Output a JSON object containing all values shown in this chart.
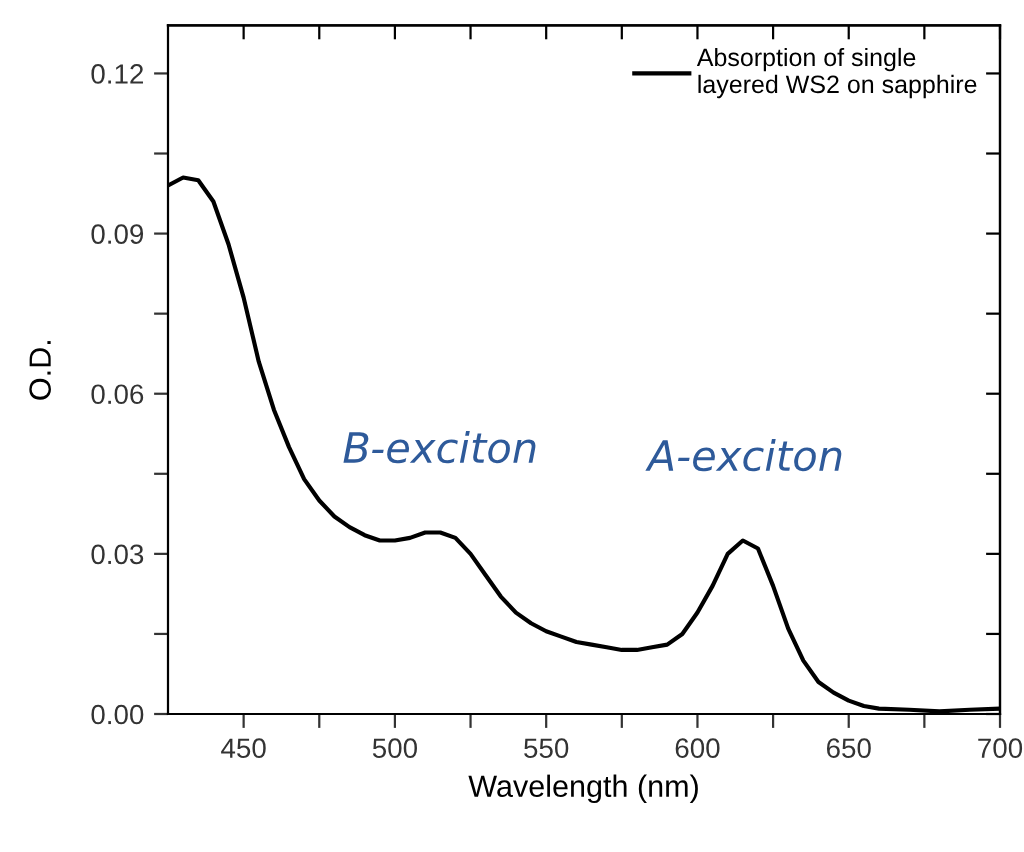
{
  "chart_data": {
    "type": "line",
    "xlabel": "Wavelength (nm)",
    "ylabel": "O.D.",
    "xlim": [
      425,
      700
    ],
    "ylim": [
      0,
      0.129
    ],
    "xticks": [
      450,
      {
        "value": 475,
        "label": null
      },
      500,
      {
        "value": 525,
        "label": null
      },
      550,
      {
        "value": 575,
        "label": null
      },
      600,
      {
        "value": 625,
        "label": null
      },
      650,
      {
        "value": 675,
        "label": null
      },
      700
    ],
    "yticks": [
      {
        "value": 0,
        "label": "0.00"
      },
      {
        "value": 0.015,
        "label": null
      },
      0.03,
      {
        "value": 0.045,
        "label": null
      },
      0.06,
      {
        "value": 0.075,
        "label": null
      },
      0.09,
      {
        "value": 0.105,
        "label": null
      },
      0.12
    ],
    "grid": false,
    "legend": "top right",
    "marker": "none",
    "line_style": "solid",
    "series": [
      {
        "name": "Absorption of single\nlayered WS2 on sapphire",
        "color": "#000000",
        "x": [
          425,
          430,
          435,
          440,
          445,
          450,
          455,
          460,
          465,
          470,
          475,
          480,
          485,
          490,
          495,
          500,
          505,
          510,
          515,
          520,
          525,
          530,
          535,
          540,
          545,
          550,
          555,
          560,
          565,
          570,
          575,
          580,
          585,
          590,
          595,
          600,
          605,
          610,
          615,
          620,
          625,
          630,
          635,
          640,
          645,
          650,
          655,
          660,
          670,
          680,
          690,
          700
        ],
        "values": [
          0.099,
          0.1005,
          0.1,
          0.096,
          0.088,
          0.078,
          0.066,
          0.057,
          0.05,
          0.044,
          0.04,
          0.037,
          0.035,
          0.0335,
          0.0325,
          0.0325,
          0.033,
          0.034,
          0.034,
          0.033,
          0.03,
          0.026,
          0.022,
          0.019,
          0.017,
          0.0155,
          0.0145,
          0.0135,
          0.013,
          0.0125,
          0.012,
          0.012,
          0.0125,
          0.013,
          0.015,
          0.019,
          0.024,
          0.03,
          0.0325,
          0.031,
          0.024,
          0.016,
          0.01,
          0.006,
          0.004,
          0.0025,
          0.0015,
          0.001,
          0.0008,
          0.0005,
          0.0008,
          0.001
        ]
      }
    ],
    "annotations": [
      {
        "text": "B-exciton",
        "x": 515,
        "y": 0.034
      },
      {
        "text": "A-exciton",
        "x": 616,
        "y": 0.0325
      }
    ]
  }
}
